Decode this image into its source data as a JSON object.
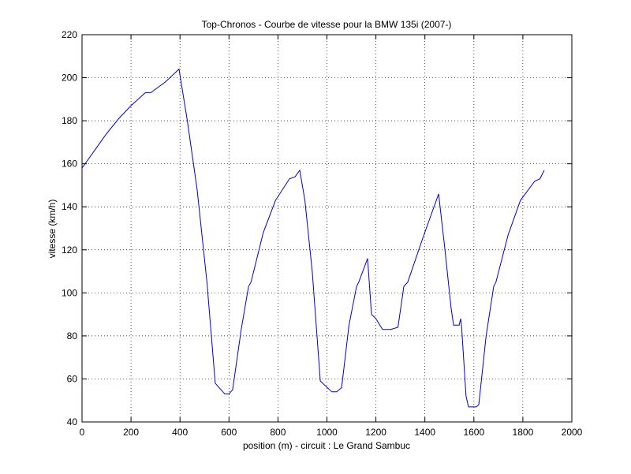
{
  "chart_data": {
    "type": "line",
    "title": "Top-Chronos - Courbe de vitesse pour la BMW 135i (2007-)",
    "x_label": "position (m) - circuit : Le Grand Sambuc",
    "y_label": "vitesse (km/h)",
    "x": [
      0,
      50,
      100,
      150,
      200,
      258,
      280,
      340,
      396,
      430,
      470,
      510,
      544,
      583,
      600,
      615,
      650,
      680,
      690,
      740,
      790,
      847,
      870,
      889,
      910,
      940,
      973,
      1020,
      1040,
      1060,
      1090,
      1121,
      1130,
      1166,
      1182,
      1200,
      1227,
      1260,
      1290,
      1314,
      1330,
      1390,
      1456,
      1480,
      1507,
      1517,
      1540,
      1546,
      1550,
      1568,
      1578,
      1610,
      1620,
      1650,
      1681,
      1690,
      1740,
      1790,
      1849,
      1870,
      1887
    ],
    "values": [
      158,
      166,
      174,
      181,
      187,
      193,
      193,
      198,
      204,
      180,
      148,
      105,
      58,
      53,
      53,
      55,
      83,
      103,
      105,
      128,
      143,
      153,
      154,
      157,
      143,
      110,
      59,
      54,
      54,
      56,
      85,
      103,
      105,
      116,
      90,
      88,
      83,
      83,
      84,
      103,
      105,
      125,
      146,
      122,
      93,
      85,
      85,
      88,
      84,
      52,
      47,
      47,
      48,
      80,
      103,
      105,
      127,
      143,
      152,
      153,
      157
    ],
    "color": "#0000cc",
    "xlim": [
      0,
      2000
    ],
    "xticks": [
      0,
      200,
      400,
      600,
      800,
      1000,
      1200,
      1400,
      1600,
      1800,
      2000
    ],
    "ylim": [
      40,
      220
    ],
    "yticks": [
      40,
      60,
      80,
      100,
      120,
      140,
      160,
      180,
      200,
      220
    ],
    "grid": true
  }
}
